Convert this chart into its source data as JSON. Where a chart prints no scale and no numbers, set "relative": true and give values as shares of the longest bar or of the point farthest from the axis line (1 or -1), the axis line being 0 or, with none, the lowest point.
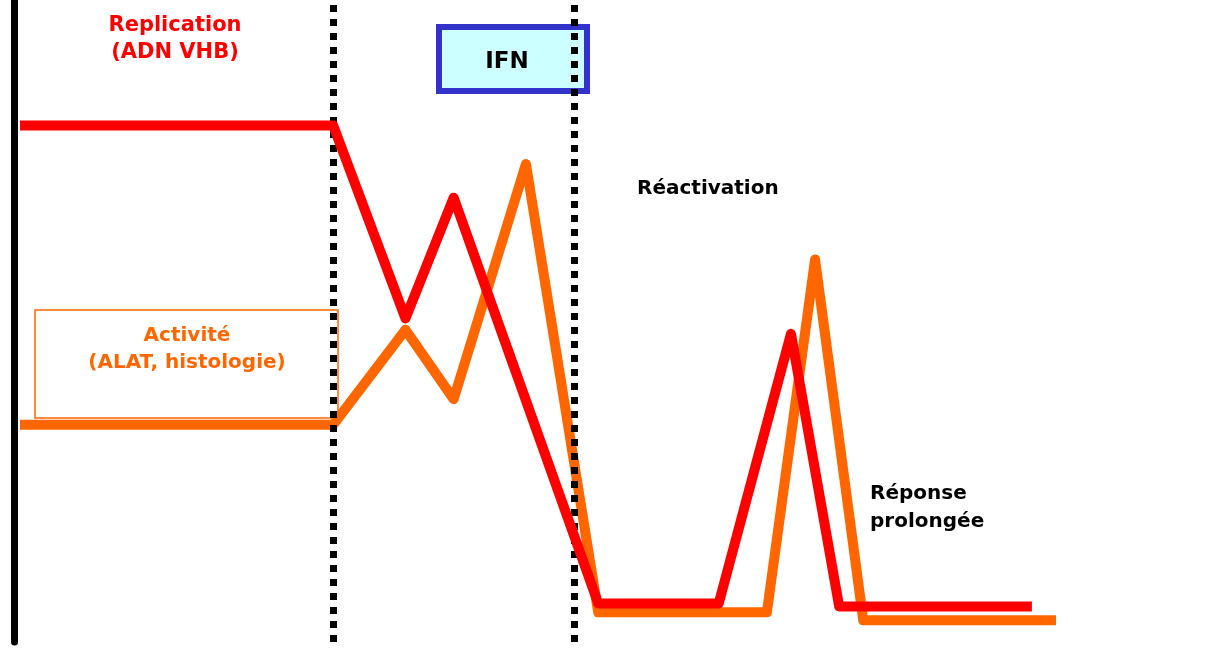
{
  "chart_data": {
    "type": "line",
    "relative": true,
    "marker": "none",
    "line_style": "solid",
    "categories": [
      null,
      null,
      null,
      null,
      null,
      null,
      null,
      null,
      null,
      null,
      null,
      null,
      null,
      null,
      null,
      null,
      null,
      null,
      null,
      null,
      null,
      null,
      null,
      null,
      null,
      null,
      null,
      null,
      null,
      null,
      null,
      null,
      null,
      null,
      null,
      null,
      null,
      null,
      null,
      null,
      null,
      null,
      null,
      null
    ],
    "series": [
      {
        "name": "Replication (ADN VHB)",
        "color": "#ff0000",
        "values": [
          1,
          null,
          null,
          null,
          null,
          null,
          null,
          null,
          null,
          null,
          null,
          null,
          null,
          1,
          null,
          null,
          0.61,
          null,
          0.854,
          null,
          null,
          null,
          null,
          null,
          0.034,
          null,
          null,
          null,
          null,
          0.034,
          null,
          null,
          0.579,
          null,
          0.028,
          null,
          null,
          null,
          null,
          null,
          null,
          null,
          0.028,
          null
        ]
      },
      {
        "name": "Activité (ALAT, histologie)",
        "color": "#ff6600",
        "values": [
          0.395,
          null,
          null,
          null,
          null,
          null,
          null,
          null,
          null,
          null,
          null,
          null,
          null,
          0.395,
          null,
          null,
          0.587,
          null,
          0.447,
          null,
          null,
          0.922,
          null,
          null,
          0.016,
          null,
          null,
          null,
          null,
          null,
          null,
          0.016,
          null,
          0.729,
          null,
          0,
          null,
          null,
          null,
          null,
          null,
          null,
          null,
          0
        ]
      }
    ],
    "annotations": [
      "IFN",
      "Réactivation",
      "Réponse prolongée"
    ]
  }
}
